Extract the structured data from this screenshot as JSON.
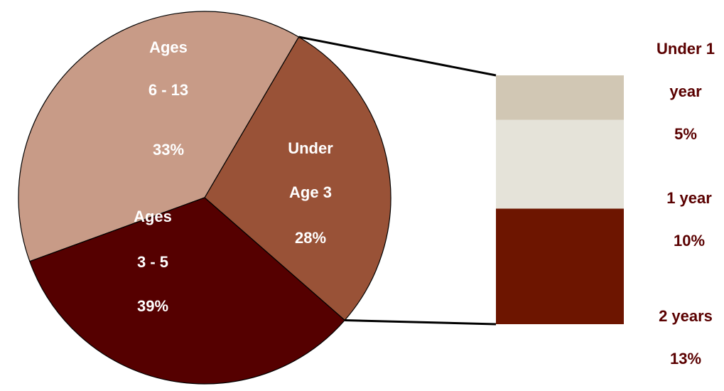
{
  "chart_data": {
    "type": "pie",
    "slices": [
      {
        "label_lines": [
          "Under",
          "Age 3",
          "28%"
        ],
        "value": 28,
        "color": "#995237"
      },
      {
        "label_lines": [
          "Ages",
          "3 - 5",
          "39%"
        ],
        "value": 39,
        "color": "#c89b87"
      },
      {
        "label_lines": [
          "Ages",
          "6 - 13",
          "33%"
        ],
        "value": 33,
        "color": "#550000"
      }
    ],
    "breakdown": {
      "of_slice": 0,
      "stacked_bar": [
        {
          "label_lines": [
            "Under 1",
            "year",
            "5%"
          ],
          "value": 5,
          "color": "#d1c7b4"
        },
        {
          "label_lines": [
            "1 year",
            "10%"
          ],
          "value": 10,
          "color": "#e5e3d9"
        },
        {
          "label_lines": [
            "2 years",
            "13%"
          ],
          "value": 13,
          "color": "#6d1500"
        }
      ],
      "label_color": "#5a0000"
    },
    "slice_label_color": "#ffffff"
  }
}
